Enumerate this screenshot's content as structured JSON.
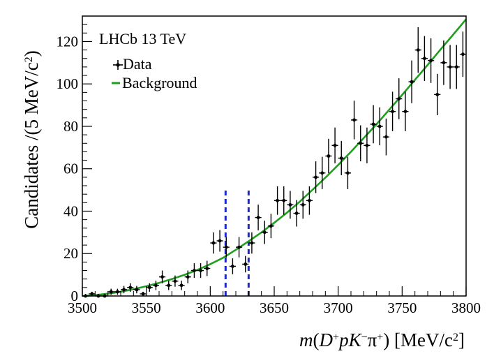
{
  "chart_data": {
    "type": "scatter",
    "xlabel": "m(D⁺pK⁻π⁺) [MeV/c²]",
    "ylabel": "Candidates /(5 MeV/c²)",
    "xlim": [
      3500,
      3800
    ],
    "ylim": [
      0,
      132
    ],
    "x_ticks": [
      3500,
      3550,
      3600,
      3650,
      3700,
      3750,
      3800
    ],
    "y_ticks": [
      0,
      20,
      40,
      60,
      80,
      100,
      120
    ],
    "annotation": "LHCb 13 TeV",
    "legend": {
      "position": "top-left",
      "entries": [
        "Data",
        "Background"
      ]
    },
    "grid": false,
    "series": [
      {
        "name": "Data",
        "type": "points_with_errors",
        "color": "#000000",
        "x": [
          3502.5,
          3507.5,
          3512.5,
          3517.5,
          3522.5,
          3527.5,
          3532.5,
          3537.5,
          3542.5,
          3547.5,
          3552.5,
          3557.5,
          3562.5,
          3567.5,
          3572.5,
          3577.5,
          3582.5,
          3587.5,
          3592.5,
          3597.5,
          3602.5,
          3607.5,
          3612.5,
          3617.5,
          3622.5,
          3627.5,
          3632.5,
          3637.5,
          3642.5,
          3647.5,
          3652.5,
          3657.5,
          3662.5,
          3667.5,
          3672.5,
          3677.5,
          3682.5,
          3687.5,
          3692.5,
          3697.5,
          3702.5,
          3707.5,
          3712.5,
          3717.5,
          3722.5,
          3727.5,
          3732.5,
          3737.5,
          3742.5,
          3747.5,
          3752.5,
          3757.5,
          3762.5,
          3767.5,
          3772.5,
          3777.5,
          3782.5,
          3787.5,
          3792.5,
          3797.5
        ],
        "y": [
          0,
          1,
          0,
          0,
          2,
          2,
          3,
          4,
          3,
          1,
          4,
          5,
          9,
          5,
          7,
          5,
          9,
          12,
          12,
          13,
          25,
          26,
          23,
          14,
          23,
          15,
          25,
          37,
          30,
          33,
          45,
          45,
          43,
          39,
          43,
          45,
          56,
          58,
          66,
          71,
          65,
          58,
          83,
          72,
          71,
          81,
          80,
          75,
          87,
          93,
          87,
          101,
          116,
          112,
          111,
          95,
          110,
          108,
          108,
          114
        ]
      },
      {
        "name": "Background",
        "type": "curve",
        "color": "#1f9e1f",
        "x": [
          3500,
          3510,
          3520,
          3530,
          3540,
          3550,
          3560,
          3570,
          3580,
          3590,
          3600,
          3610,
          3620,
          3630,
          3640,
          3650,
          3660,
          3670,
          3680,
          3690,
          3700,
          3710,
          3720,
          3730,
          3740,
          3750,
          3760,
          3770,
          3780,
          3790,
          3800
        ],
        "y": [
          0,
          0.4,
          1.1,
          2.0,
          3.2,
          4.6,
          6.2,
          8.0,
          10.0,
          12.3,
          15.0,
          18.0,
          21.8,
          25.8,
          30.0,
          34.5,
          39.3,
          44.5,
          50.1,
          55.8,
          61.8,
          68.0,
          74.5,
          81.0,
          87.9,
          94.8,
          101.9,
          109.0,
          116.2,
          123.3,
          130.5
        ]
      }
    ],
    "markers": [
      {
        "type": "vertical-dashed-line",
        "x": 3612,
        "y_top": 50,
        "color": "#1a2bd4"
      },
      {
        "type": "vertical-dashed-line",
        "x": 3630,
        "y_top": 50,
        "color": "#1a2bd4"
      }
    ]
  }
}
